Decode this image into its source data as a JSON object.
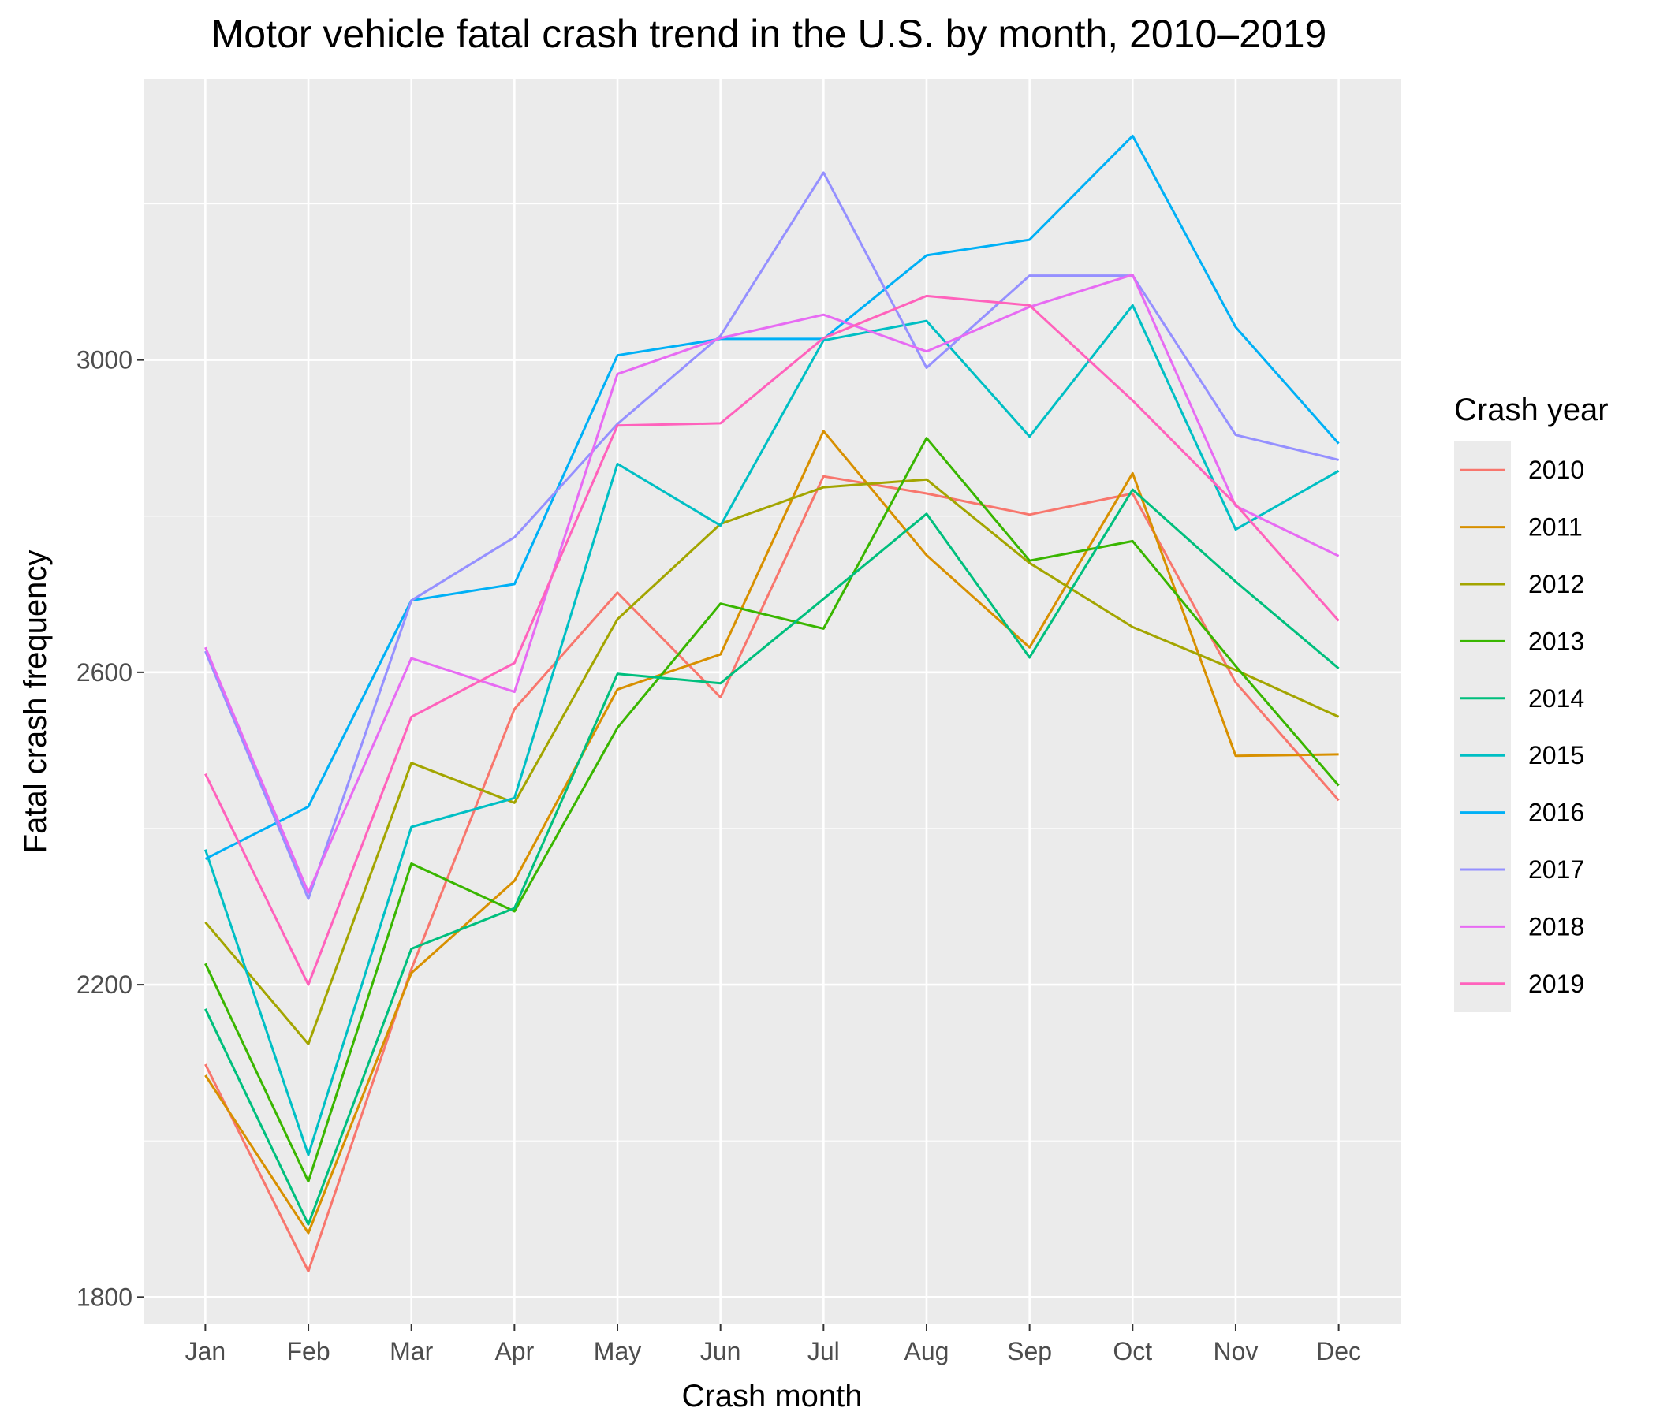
{
  "chart_data": {
    "type": "line",
    "title": "Motor vehicle fatal crash trend in the U.S. by month, 2010–2019",
    "xlabel": "Crash month",
    "ylabel": "Fatal crash frequency",
    "categories": [
      "Jan",
      "Feb",
      "Mar",
      "Apr",
      "May",
      "Jun",
      "Jul",
      "Aug",
      "Sep",
      "Oct",
      "Nov",
      "Dec"
    ],
    "ylim": [
      1765,
      3360
    ],
    "yticks": [
      1800,
      2200,
      2600,
      3000
    ],
    "ytick_labels": [
      "1800",
      "2200",
      "2600",
      "3000"
    ],
    "grid": true,
    "legend": {
      "title": "Crash year",
      "position": "right"
    },
    "series": [
      {
        "name": "2010",
        "color": "#F8766D",
        "values": [
          2098,
          1833,
          2220,
          2553,
          2702,
          2568,
          2851,
          2829,
          2802,
          2829,
          2587,
          2436
        ]
      },
      {
        "name": "2011",
        "color": "#D89000",
        "values": [
          2084,
          1882,
          2215,
          2333,
          2578,
          2623,
          2909,
          2750,
          2632,
          2855,
          2493,
          2495
        ]
      },
      {
        "name": "2012",
        "color": "#A3A500",
        "values": [
          2280,
          2124,
          2484,
          2433,
          2668,
          2790,
          2837,
          2847,
          2740,
          2658,
          2603,
          2543
        ]
      },
      {
        "name": "2013",
        "color": "#39B600",
        "values": [
          2227,
          1948,
          2355,
          2294,
          2529,
          2688,
          2656,
          2900,
          2743,
          2768,
          2608,
          2455
        ]
      },
      {
        "name": "2014",
        "color": "#00BF7D",
        "values": [
          2169,
          1893,
          2246,
          2298,
          2598,
          2586,
          2694,
          2803,
          2619,
          2834,
          2716,
          2605
        ]
      },
      {
        "name": "2015",
        "color": "#00BFC4",
        "values": [
          2373,
          1982,
          2402,
          2439,
          2867,
          2788,
          3025,
          3050,
          2902,
          3070,
          2783,
          2858
        ]
      },
      {
        "name": "2016",
        "color": "#00B0F6",
        "values": [
          2361,
          2428,
          2692,
          2713,
          3006,
          3027,
          3027,
          3134,
          3154,
          3287,
          3042,
          2893
        ]
      },
      {
        "name": "2017",
        "color": "#9590FF",
        "values": [
          2627,
          2310,
          2692,
          2773,
          2918,
          3031,
          3240,
          2990,
          3108,
          3108,
          2904,
          2872
        ]
      },
      {
        "name": "2018",
        "color": "#E76BF3",
        "values": [
          2632,
          2318,
          2618,
          2575,
          2982,
          3028,
          3058,
          3011,
          3068,
          3109,
          2813,
          2749
        ]
      },
      {
        "name": "2019",
        "color": "#FF62BC",
        "values": [
          2470,
          2200,
          2543,
          2612,
          2916,
          2919,
          3028,
          3082,
          3070,
          2948,
          2815,
          2666
        ]
      }
    ]
  }
}
